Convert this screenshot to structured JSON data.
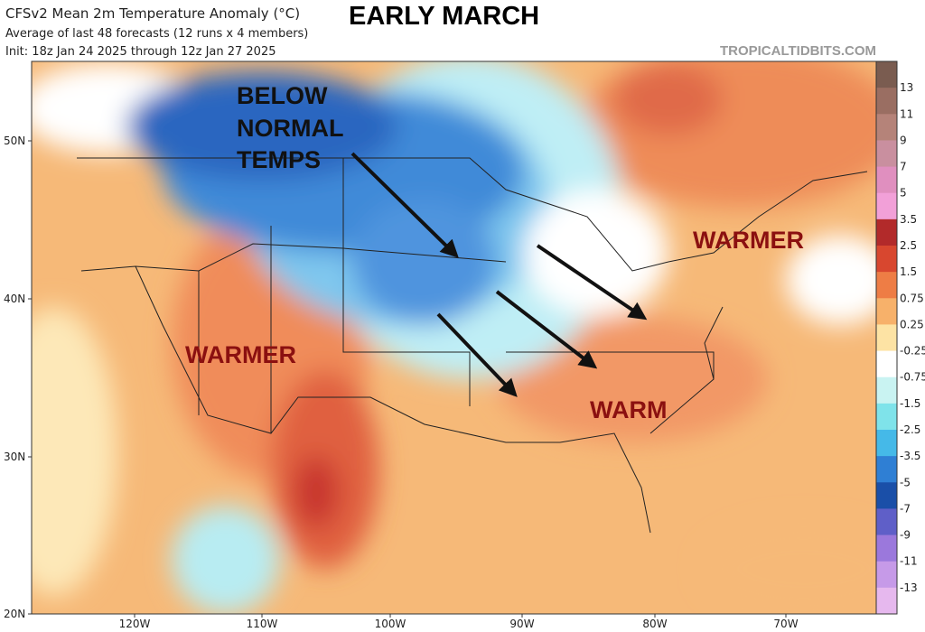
{
  "header": {
    "title": "CFSv2 Mean 2m Temperature Anomaly (°C)",
    "headline": "EARLY MARCH",
    "subtitle": "Average of last 48 forecasts (12 runs x 4 members)",
    "init": "Init: 18z Jan 24 2025 through 12z Jan 27 2025",
    "source": "TROPICALTIDBITS.COM"
  },
  "annotations": {
    "below_normal": [
      "BELOW",
      "NORMAL",
      "TEMPS"
    ],
    "warmer_west": "WARMER",
    "warmer_east": "WARMER",
    "warm_southeast": "WARM"
  },
  "lat_labels": [
    "50N",
    "40N",
    "30N",
    "20N"
  ],
  "lon_labels": [
    "120W",
    "110W",
    "100W",
    "90W",
    "80W",
    "70W"
  ],
  "colorbar": {
    "labels": [
      "13",
      "11",
      "9",
      "7",
      "5",
      "3.5",
      "2.5",
      "1.5",
      "0.75",
      "0.25",
      "-0.25",
      "-0.75",
      "-1.5",
      "-2.5",
      "-3.5",
      "-5",
      "-7",
      "-9",
      "-11",
      "-13"
    ],
    "colors": [
      "#7a5c50",
      "#9a6e62",
      "#b58379",
      "#c98f9f",
      "#e08fbf",
      "#f2a0d8",
      "#b22a2a",
      "#d8472f",
      "#ee7d45",
      "#f7b16a",
      "#fde3a4",
      "#ffffff",
      "#c9f3f2",
      "#7fe3ea",
      "#45b9e8",
      "#2f7fd4",
      "#1a4fa8",
      "#5f5fc8",
      "#9b78dc",
      "#c69ae8",
      "#e6b8ee"
    ]
  }
}
